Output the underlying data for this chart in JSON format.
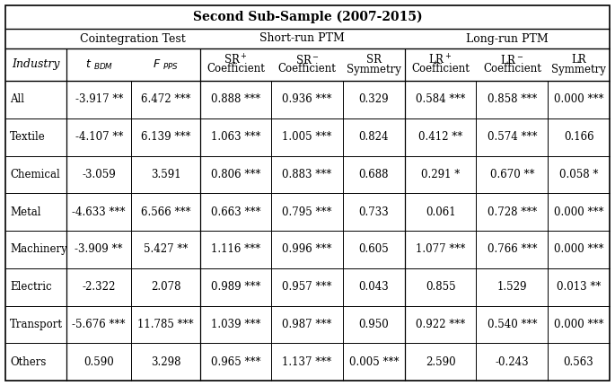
{
  "title": "Second Sub-Sample (2007-2015)",
  "rows": [
    {
      "industry": "All",
      "values": [
        [
          "-3.917",
          "**"
        ],
        [
          "6.472",
          "***"
        ],
        [
          "0.888",
          "***"
        ],
        [
          "0.936",
          "***"
        ],
        [
          "0.329",
          ""
        ],
        [
          "0.584",
          "***"
        ],
        [
          "0.858",
          "***"
        ],
        [
          "0.000",
          "***"
        ]
      ]
    },
    {
      "industry": "Textile",
      "values": [
        [
          "-4.107",
          "**"
        ],
        [
          "6.139",
          "***"
        ],
        [
          "1.063",
          "***"
        ],
        [
          "1.005",
          "***"
        ],
        [
          "0.824",
          ""
        ],
        [
          "0.412",
          "**"
        ],
        [
          "0.574",
          "***"
        ],
        [
          "0.166",
          ""
        ]
      ]
    },
    {
      "industry": "Chemical",
      "values": [
        [
          "-3.059",
          ""
        ],
        [
          "3.591",
          ""
        ],
        [
          "0.806",
          "***"
        ],
        [
          "0.883",
          "***"
        ],
        [
          "0.688",
          ""
        ],
        [
          "0.291",
          "*"
        ],
        [
          "0.670",
          "**"
        ],
        [
          "0.058",
          "*"
        ]
      ]
    },
    {
      "industry": "Metal",
      "values": [
        [
          "-4.633",
          "***"
        ],
        [
          "6.566",
          "***"
        ],
        [
          "0.663",
          "***"
        ],
        [
          "0.795",
          "***"
        ],
        [
          "0.733",
          ""
        ],
        [
          "0.061",
          ""
        ],
        [
          "0.728",
          "***"
        ],
        [
          "0.000",
          "***"
        ]
      ]
    },
    {
      "industry": "Machinery",
      "values": [
        [
          "-3.909",
          "**"
        ],
        [
          "5.427",
          "**"
        ],
        [
          "1.116",
          "***"
        ],
        [
          "0.996",
          "***"
        ],
        [
          "0.605",
          ""
        ],
        [
          "1.077",
          "***"
        ],
        [
          "0.766",
          "***"
        ],
        [
          "0.000",
          "***"
        ]
      ]
    },
    {
      "industry": "Electric",
      "values": [
        [
          "-2.322",
          ""
        ],
        [
          "2.078",
          ""
        ],
        [
          "0.989",
          "***"
        ],
        [
          "0.957",
          "***"
        ],
        [
          "0.043",
          ""
        ],
        [
          "0.855",
          ""
        ],
        [
          "1.529",
          ""
        ],
        [
          "0.013",
          "**"
        ]
      ]
    },
    {
      "industry": "Transport",
      "values": [
        [
          "-5.676",
          "***"
        ],
        [
          "11.785",
          "***"
        ],
        [
          "1.039",
          "***"
        ],
        [
          "0.987",
          "***"
        ],
        [
          "0.950",
          ""
        ],
        [
          "0.922",
          "***"
        ],
        [
          "0.540",
          "***"
        ],
        [
          "0.000",
          "***"
        ]
      ]
    },
    {
      "industry": "Others",
      "values": [
        [
          "0.590",
          ""
        ],
        [
          "3.298",
          ""
        ],
        [
          "0.965",
          "***"
        ],
        [
          "1.137",
          "***"
        ],
        [
          "0.005",
          "***"
        ],
        [
          "2.590",
          ""
        ],
        [
          "-0.243",
          ""
        ],
        [
          "0.563",
          ""
        ]
      ]
    }
  ]
}
